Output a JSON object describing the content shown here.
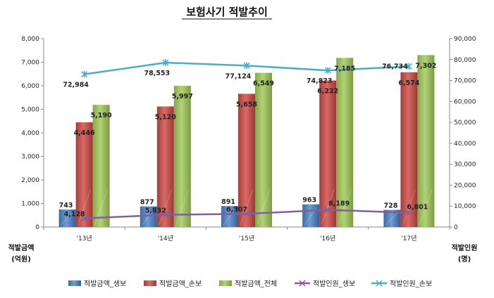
{
  "chart_data": {
    "type": "bar",
    "title": "보험사기 적발추이",
    "categories": [
      "'13년",
      "'14년",
      "'15년",
      "'16년",
      "'17년"
    ],
    "y_left": {
      "label_line1": "적발금액",
      "label_line2": "(억원)",
      "ylim": [
        0,
        8000
      ],
      "ticks": [
        "0",
        "1,000",
        "2,000",
        "3,000",
        "4,000",
        "5,000",
        "6,000",
        "7,000",
        "8,000"
      ]
    },
    "y_right": {
      "label_line1": "적발인원",
      "label_line2": "(명)",
      "ylim": [
        0,
        90000
      ],
      "ticks": [
        "0",
        "10,000",
        "20,000",
        "30,000",
        "40,000",
        "50,000",
        "60,000",
        "70,000",
        "80,000",
        "90,000"
      ]
    },
    "series": [
      {
        "name": "적발금액_생보",
        "kind": "bar",
        "axis": "left",
        "color": "#4f81bd",
        "values": [
          743,
          877,
          891,
          963,
          728
        ],
        "labels": [
          "743",
          "877",
          "891",
          "963",
          "728"
        ]
      },
      {
        "name": "적발금액_손보",
        "kind": "bar",
        "axis": "left",
        "color": "#c0504d",
        "values": [
          4446,
          5120,
          5658,
          6222,
          6574
        ],
        "labels": [
          "4,446",
          "5,120",
          "5,658",
          "6,222",
          "6,574"
        ]
      },
      {
        "name": "적발금액_전체",
        "kind": "bar",
        "axis": "left",
        "color": "#9bbb59",
        "values": [
          5190,
          5997,
          6549,
          7185,
          7302
        ],
        "labels": [
          "5,190",
          "5,997",
          "6,549",
          "7,185",
          "7,302"
        ]
      },
      {
        "name": "적발인원_생보",
        "kind": "line",
        "axis": "right",
        "color": "#7f5f9f",
        "values": [
          4128,
          5832,
          6307,
          8189,
          6801
        ],
        "labels": [
          "4,128",
          "5,832",
          "6,307",
          "8,189",
          "6,801"
        ]
      },
      {
        "name": "적발인원_손보",
        "kind": "line",
        "axis": "right",
        "color": "#4bacc6",
        "values": [
          72984,
          78553,
          77124,
          74823,
          76734
        ],
        "labels": [
          "72,984",
          "78,553",
          "77,124",
          "74,823",
          "76,734"
        ]
      }
    ],
    "grid": false,
    "legend": "bottom"
  }
}
